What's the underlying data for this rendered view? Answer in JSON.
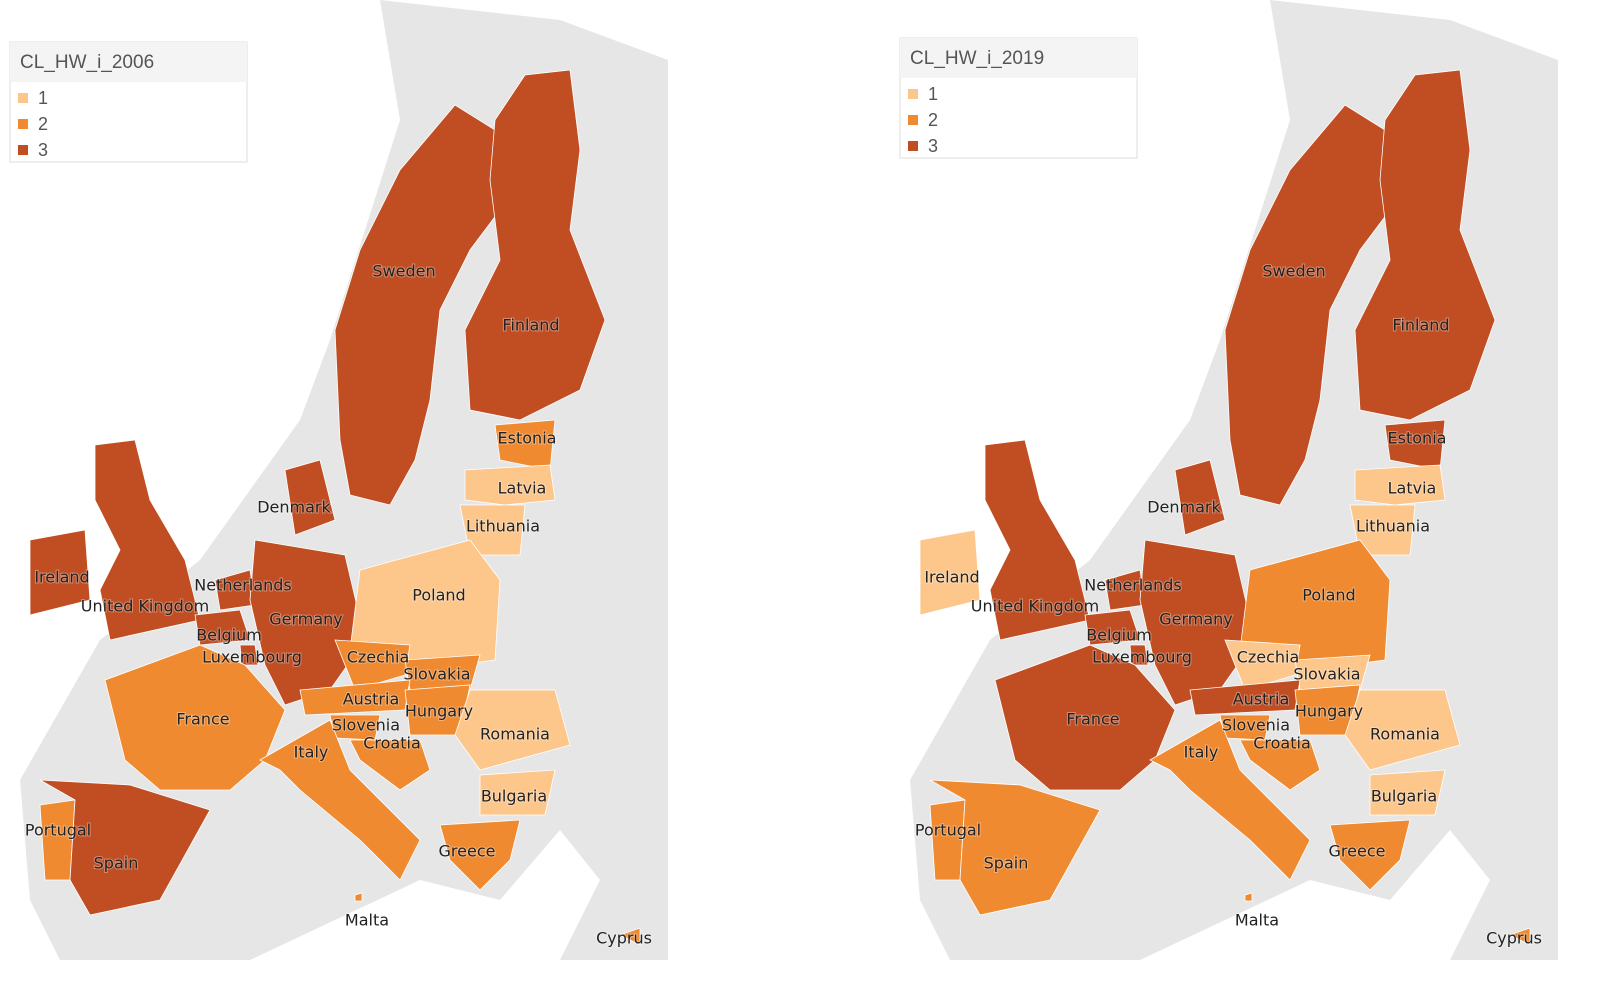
{
  "maps": [
    {
      "legend": {
        "title": "CL_HW_i_2006",
        "items": [
          {
            "value": 1,
            "color": "#fdc68a"
          },
          {
            "value": 2,
            "color": "#ef8a30"
          },
          {
            "value": 3,
            "color": "#c04e22"
          }
        ]
      },
      "countries": [
        {
          "name": "Sweden",
          "class": 3
        },
        {
          "name": "Finland",
          "class": 3
        },
        {
          "name": "Estonia",
          "class": 2
        },
        {
          "name": "Latvia",
          "class": 1
        },
        {
          "name": "Lithuania",
          "class": 1
        },
        {
          "name": "Denmark",
          "class": 3
        },
        {
          "name": "Ireland",
          "class": 3
        },
        {
          "name": "United Kingdom",
          "class": 3
        },
        {
          "name": "Netherlands",
          "class": 3
        },
        {
          "name": "Belgium",
          "class": 3
        },
        {
          "name": "Luxembourg",
          "class": 3
        },
        {
          "name": "Germany",
          "class": 3
        },
        {
          "name": "Poland",
          "class": 1
        },
        {
          "name": "Czechia",
          "class": 2
        },
        {
          "name": "Slovakia",
          "class": 2
        },
        {
          "name": "Austria",
          "class": 2
        },
        {
          "name": "Hungary",
          "class": 2
        },
        {
          "name": "Slovenia",
          "class": 2
        },
        {
          "name": "Croatia",
          "class": 2
        },
        {
          "name": "Romania",
          "class": 1
        },
        {
          "name": "Bulgaria",
          "class": 1
        },
        {
          "name": "France",
          "class": 2
        },
        {
          "name": "Italy",
          "class": 2
        },
        {
          "name": "Portugal",
          "class": 2
        },
        {
          "name": "Spain",
          "class": 3
        },
        {
          "name": "Greece",
          "class": 2
        },
        {
          "name": "Malta",
          "class": 2
        },
        {
          "name": "Cyprus",
          "class": 2
        }
      ]
    },
    {
      "legend": {
        "title": "CL_HW_i_2019",
        "items": [
          {
            "value": 1,
            "color": "#fdc68a"
          },
          {
            "value": 2,
            "color": "#ef8a30"
          },
          {
            "value": 3,
            "color": "#c04e22"
          }
        ]
      },
      "countries": [
        {
          "name": "Sweden",
          "class": 3
        },
        {
          "name": "Finland",
          "class": 3
        },
        {
          "name": "Estonia",
          "class": 3
        },
        {
          "name": "Latvia",
          "class": 1
        },
        {
          "name": "Lithuania",
          "class": 1
        },
        {
          "name": "Denmark",
          "class": 3
        },
        {
          "name": "Ireland",
          "class": 1
        },
        {
          "name": "United Kingdom",
          "class": 3
        },
        {
          "name": "Netherlands",
          "class": 3
        },
        {
          "name": "Belgium",
          "class": 3
        },
        {
          "name": "Luxembourg",
          "class": 3
        },
        {
          "name": "Germany",
          "class": 3
        },
        {
          "name": "Poland",
          "class": 2
        },
        {
          "name": "Czechia",
          "class": 1
        },
        {
          "name": "Slovakia",
          "class": 1
        },
        {
          "name": "Austria",
          "class": 3
        },
        {
          "name": "Hungary",
          "class": 2
        },
        {
          "name": "Slovenia",
          "class": 2
        },
        {
          "name": "Croatia",
          "class": 2
        },
        {
          "name": "Romania",
          "class": 1
        },
        {
          "name": "Bulgaria",
          "class": 1
        },
        {
          "name": "France",
          "class": 3
        },
        {
          "name": "Italy",
          "class": 2
        },
        {
          "name": "Portugal",
          "class": 2
        },
        {
          "name": "Spain",
          "class": 2
        },
        {
          "name": "Greece",
          "class": 2
        },
        {
          "name": "Malta",
          "class": 2
        },
        {
          "name": "Cyprus",
          "class": 2
        }
      ]
    }
  ]
}
